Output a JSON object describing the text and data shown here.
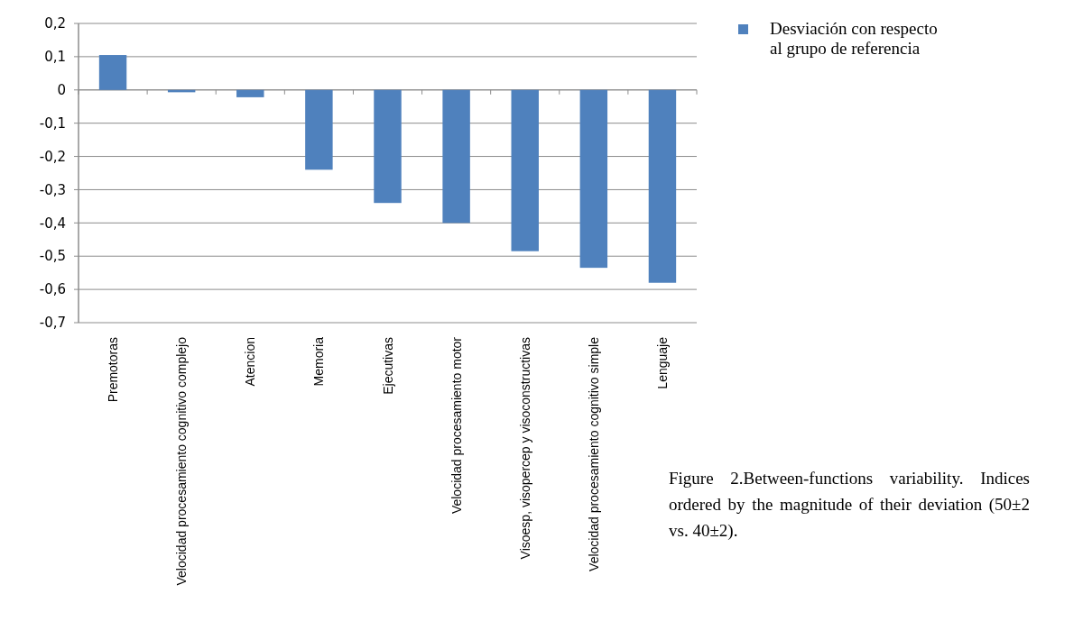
{
  "chart_data": {
    "type": "bar",
    "categories": [
      "Premotoras",
      "Velocidad procesamiento cognitivo complejo",
      "Atencion",
      "Memoria",
      "Ejecutivas",
      "Velocidad procesamiento motor",
      "Visoesp, visopercep y visoconstructivas",
      "Velocidad procesamiento cognitivo simple",
      "Lenguaje"
    ],
    "series": [
      {
        "name": "Desviación con respecto al grupo de referencia",
        "color": "#4f81bd",
        "values": [
          0.105,
          -0.007,
          -0.022,
          -0.24,
          -0.34,
          -0.4,
          -0.485,
          -0.535,
          -0.58
        ]
      }
    ],
    "ylim": [
      -0.7,
      0.2
    ],
    "yticks": [
      {
        "value": 0.2,
        "label": "0,2"
      },
      {
        "value": 0.1,
        "label": "0,1"
      },
      {
        "value": 0,
        "label": "0"
      },
      {
        "value": -0.1,
        "label": "-0,1"
      },
      {
        "value": -0.2,
        "label": "-0,2"
      },
      {
        "value": -0.3,
        "label": "-0,3"
      },
      {
        "value": -0.4,
        "label": "-0,4"
      },
      {
        "value": -0.5,
        "label": "-0,5"
      },
      {
        "value": -0.6,
        "label": "-0,6"
      },
      {
        "value": -0.7,
        "label": "-0,7"
      }
    ],
    "grid": "y",
    "legend": "right",
    "annotations": [
      "Figure 2.Between-functions variability. Indices ordered by the magnitude of their deviation (50±2 vs. 40±2)."
    ]
  }
}
